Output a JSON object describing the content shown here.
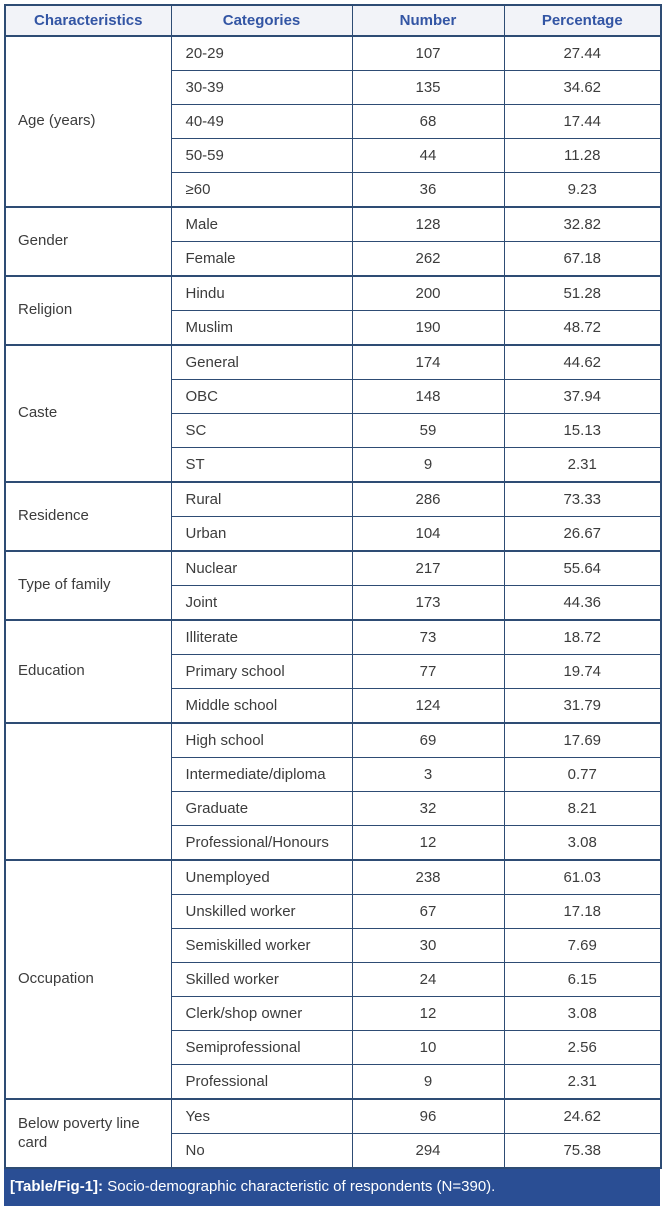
{
  "colors": {
    "border": "#2e4c74",
    "header_text": "#3355a4",
    "header_bg": "#f2f3f8",
    "body_text": "#3c3c3c",
    "caption_bg": "#2a4e94",
    "caption_text": "#ffffff"
  },
  "table": {
    "headers": [
      "Characteristics",
      "Categories",
      "Number",
      "Percentage"
    ],
    "groups": [
      {
        "characteristic": "Age (years)",
        "rows": [
          [
            "20-29",
            "107",
            "27.44"
          ],
          [
            "30-39",
            "135",
            "34.62"
          ],
          [
            "40-49",
            "68",
            "17.44"
          ],
          [
            "50-59",
            "44",
            "11.28"
          ],
          [
            "≥60",
            "36",
            "9.23"
          ]
        ]
      },
      {
        "characteristic": "Gender",
        "rows": [
          [
            "Male",
            "128",
            "32.82"
          ],
          [
            "Female",
            "262",
            "67.18"
          ]
        ]
      },
      {
        "characteristic": "Religion",
        "rows": [
          [
            "Hindu",
            "200",
            "51.28"
          ],
          [
            "Muslim",
            "190",
            "48.72"
          ]
        ]
      },
      {
        "characteristic": "Caste",
        "rows": [
          [
            "General",
            "174",
            "44.62"
          ],
          [
            "OBC",
            "148",
            "37.94"
          ],
          [
            "SC",
            "59",
            "15.13"
          ],
          [
            "ST",
            "9",
            "2.31"
          ]
        ]
      },
      {
        "characteristic": "Residence",
        "rows": [
          [
            "Rural",
            "286",
            "73.33"
          ],
          [
            "Urban",
            "104",
            "26.67"
          ]
        ]
      },
      {
        "characteristic": "Type of family",
        "rows": [
          [
            "Nuclear",
            "217",
            "55.64"
          ],
          [
            "Joint",
            "173",
            "44.36"
          ]
        ]
      },
      {
        "characteristic": "Education",
        "rows": [
          [
            "Illiterate",
            "73",
            "18.72"
          ],
          [
            "Primary school",
            "77",
            "19.74"
          ],
          [
            "Middle school",
            "124",
            "31.79"
          ]
        ]
      },
      {
        "characteristic": "",
        "rows": [
          [
            "High school",
            "69",
            "17.69"
          ],
          [
            "Intermediate/diploma",
            "3",
            "0.77"
          ],
          [
            "Graduate",
            "32",
            "8.21"
          ],
          [
            "Professional/Honours",
            "12",
            "3.08"
          ]
        ]
      },
      {
        "characteristic": "Occupation",
        "rows": [
          [
            "Unemployed",
            "238",
            "61.03"
          ],
          [
            "Unskilled worker",
            "67",
            "17.18"
          ],
          [
            "Semiskilled worker",
            "30",
            "7.69"
          ],
          [
            "Skilled worker",
            "24",
            "6.15"
          ],
          [
            "Clerk/shop owner",
            "12",
            "3.08"
          ],
          [
            "Semiprofessional",
            "10",
            "2.56"
          ],
          [
            "Professional",
            "9",
            "2.31"
          ]
        ]
      },
      {
        "characteristic": "Below poverty line card",
        "rows": [
          [
            "Yes",
            "96",
            "24.62"
          ],
          [
            "No",
            "294",
            "75.38"
          ]
        ]
      }
    ]
  },
  "caption": {
    "tag": "[Table/Fig-1]:",
    "text": "Socio-demographic characteristic of respondents (N=390)."
  }
}
